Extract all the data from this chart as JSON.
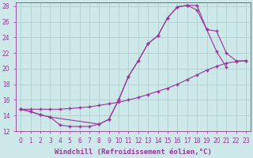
{
  "xlabel": "Windchill (Refroidissement éolien,°C)",
  "background_color": "#cce8e8",
  "grid_color": "#aacccc",
  "line_color": "#993399",
  "xlim": [
    -0.5,
    23.5
  ],
  "ylim": [
    12,
    28.5
  ],
  "xticks": [
    0,
    1,
    2,
    3,
    4,
    5,
    6,
    7,
    8,
    9,
    10,
    11,
    12,
    13,
    14,
    15,
    16,
    17,
    18,
    19,
    20,
    21,
    22,
    23
  ],
  "yticks": [
    12,
    14,
    16,
    18,
    20,
    22,
    24,
    26,
    28
  ],
  "series1_x": [
    0,
    1,
    2,
    3,
    4,
    5,
    6,
    7,
    8,
    9,
    10,
    11,
    12,
    13,
    14,
    15,
    16,
    17,
    18,
    19,
    20,
    21
  ],
  "series1_y": [
    14.8,
    14.5,
    14.1,
    13.8,
    12.8,
    12.6,
    12.6,
    12.6,
    12.9,
    13.5,
    16.0,
    19.0,
    21.0,
    23.2,
    24.2,
    26.5,
    27.9,
    28.1,
    27.5,
    25.0,
    22.2,
    20.2
  ],
  "series2_x": [
    0,
    1,
    2,
    3,
    4,
    5,
    6,
    7,
    8,
    9,
    10,
    11,
    12,
    13,
    14,
    15,
    16,
    17,
    18,
    19,
    20,
    21,
    22,
    23
  ],
  "series2_y": [
    14.8,
    14.8,
    14.8,
    14.8,
    14.8,
    14.9,
    15.0,
    15.1,
    15.3,
    15.5,
    15.7,
    16.0,
    16.3,
    16.7,
    17.1,
    17.5,
    18.0,
    18.6,
    19.2,
    19.8,
    20.3,
    20.7,
    20.9,
    21.0
  ],
  "series3_x": [
    0,
    1,
    2,
    3,
    8,
    9,
    10,
    11,
    12,
    13,
    14,
    15,
    16,
    17,
    18,
    19,
    20,
    21,
    22,
    23
  ],
  "series3_y": [
    14.8,
    14.5,
    14.1,
    13.8,
    12.9,
    13.5,
    16.0,
    19.0,
    21.0,
    23.2,
    24.2,
    26.5,
    27.9,
    28.1,
    28.1,
    25.0,
    24.8,
    22.0,
    21.0,
    21.0
  ],
  "font_color": "#993399",
  "tick_fontsize": 5.5,
  "label_fontsize": 6.5
}
